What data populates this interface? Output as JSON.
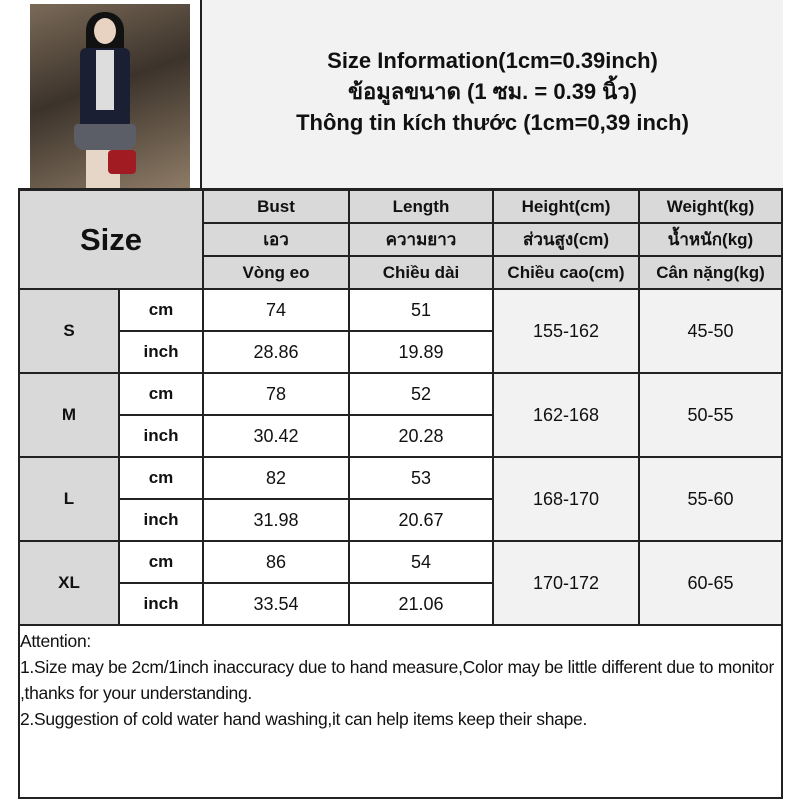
{
  "title": {
    "line1": "Size Information(1cm=0.39inch)",
    "line2": "ข้อมูลขนาด (1 ซม. = 0.39 นิ้ว)",
    "line3": "Thông tin kích thước (1cm=0,39 inch)"
  },
  "table": {
    "size_header": "Size",
    "headers": [
      [
        "Bust",
        "Length",
        "Height(cm)",
        "Weight(kg)"
      ],
      [
        "เอว",
        "ความยาว",
        "ส่วนสูง(cm)",
        "น้ำหนัก(kg)"
      ],
      [
        "Vòng eo",
        "Chiều dài",
        "Chiều cao(cm)",
        "Cân nặng(kg)"
      ]
    ],
    "rows": [
      {
        "size": "S",
        "units": [
          "cm",
          "inch"
        ],
        "bust": [
          "74",
          "28.86"
        ],
        "length": [
          "51",
          "19.89"
        ],
        "height": "155-162",
        "weight": "45-50"
      },
      {
        "size": "M",
        "units": [
          "cm",
          "inch"
        ],
        "bust": [
          "78",
          "30.42"
        ],
        "length": [
          "52",
          "20.28"
        ],
        "height": "162-168",
        "weight": "50-55"
      },
      {
        "size": "L",
        "units": [
          "cm",
          "inch"
        ],
        "bust": [
          "82",
          "31.98"
        ],
        "length": [
          "53",
          "20.67"
        ],
        "height": "168-170",
        "weight": "55-60"
      },
      {
        "size": "XL",
        "units": [
          "cm",
          "inch"
        ],
        "bust": [
          "86",
          "33.54"
        ],
        "length": [
          "54",
          "21.06"
        ],
        "height": "170-172",
        "weight": "60-65"
      }
    ]
  },
  "attention": [
    "Attention:",
    "1.Size may be 2cm/1inch inaccuracy due to hand measure,Color may be little different due to monitor ,thanks for your understanding.",
    "2.Suggestion of cold water hand washing,it can help items keep their shape."
  ]
}
